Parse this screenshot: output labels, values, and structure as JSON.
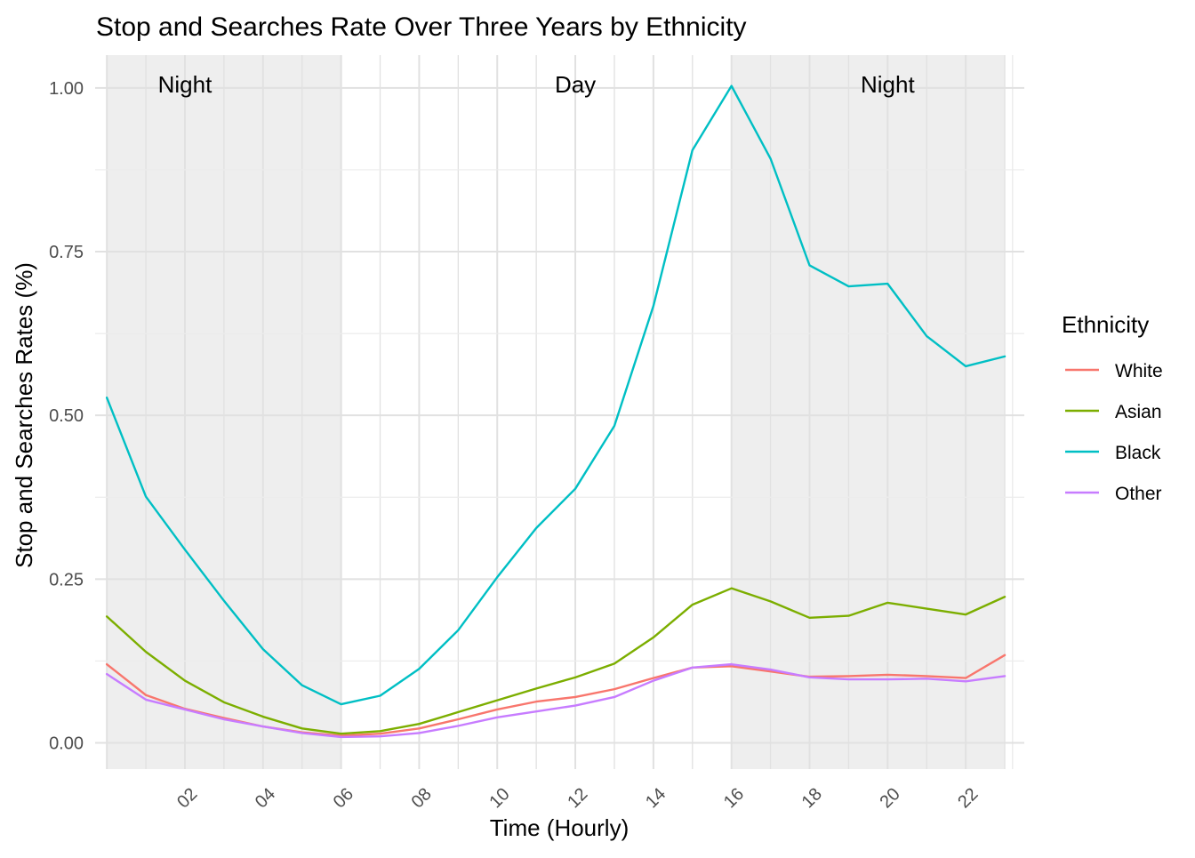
{
  "chart_data": {
    "type": "line",
    "title": "Stop and Searches Rate Over Three Years by Ethnicity",
    "xlabel": "Time (Hourly)",
    "ylabel": "Stop and Searches Rates (%)",
    "x": [
      0,
      1,
      2,
      3,
      4,
      5,
      6,
      7,
      8,
      9,
      10,
      11,
      12,
      13,
      14,
      15,
      16,
      17,
      18,
      19,
      20,
      21,
      22,
      23
    ],
    "xlim": [
      -0.3,
      23.5
    ],
    "ylim": [
      -0.04,
      1.05
    ],
    "x_ticks": [
      {
        "value": 2,
        "label": "02"
      },
      {
        "value": 4,
        "label": "04"
      },
      {
        "value": 6,
        "label": "06"
      },
      {
        "value": 8,
        "label": "08"
      },
      {
        "value": 10,
        "label": "10"
      },
      {
        "value": 12,
        "label": "12"
      },
      {
        "value": 14,
        "label": "14"
      },
      {
        "value": 16,
        "label": "16"
      },
      {
        "value": 18,
        "label": "18"
      },
      {
        "value": 20,
        "label": "20"
      },
      {
        "value": 22,
        "label": "22"
      }
    ],
    "y_ticks": [
      {
        "value": 0,
        "label": "0.00"
      },
      {
        "value": 0.25,
        "label": "0.25"
      },
      {
        "value": 0.5,
        "label": "0.50"
      },
      {
        "value": 0.75,
        "label": "0.75"
      },
      {
        "value": 1.0,
        "label": "1.00"
      }
    ],
    "grid": true,
    "shaded_regions": [
      {
        "from": 0,
        "to": 6,
        "label": "Night",
        "label_x": 2
      },
      {
        "from": 16,
        "to": 23,
        "label": "Night",
        "label_x": 20
      }
    ],
    "region_annotations": [
      {
        "x": 12,
        "label": "Day"
      }
    ],
    "legend": {
      "title": "Ethnicity",
      "position": "right"
    },
    "series": [
      {
        "name": "White",
        "color": "#F8766D",
        "values": [
          0.12,
          0.073,
          0.052,
          0.038,
          0.025,
          0.016,
          0.011,
          0.014,
          0.022,
          0.036,
          0.051,
          0.063,
          0.07,
          0.082,
          0.099,
          0.115,
          0.117,
          0.109,
          0.101,
          0.102,
          0.104,
          0.102,
          0.099,
          0.134
        ]
      },
      {
        "name": "Asian",
        "color": "#7CAE00",
        "values": [
          0.193,
          0.139,
          0.095,
          0.062,
          0.04,
          0.022,
          0.014,
          0.018,
          0.029,
          0.047,
          0.065,
          0.083,
          0.1,
          0.121,
          0.161,
          0.211,
          0.236,
          0.216,
          0.191,
          0.194,
          0.214,
          0.205,
          0.196,
          0.223
        ]
      },
      {
        "name": "Black",
        "color": "#00BFC4",
        "values": [
          0.527,
          0.376,
          0.295,
          0.217,
          0.143,
          0.088,
          0.059,
          0.072,
          0.113,
          0.172,
          0.253,
          0.328,
          0.388,
          0.484,
          0.667,
          0.905,
          1.003,
          0.892,
          0.729,
          0.697,
          0.701,
          0.621,
          0.575,
          0.59
        ]
      },
      {
        "name": "Other",
        "color": "#C77CFF",
        "values": [
          0.105,
          0.066,
          0.051,
          0.036,
          0.025,
          0.015,
          0.009,
          0.01,
          0.015,
          0.026,
          0.039,
          0.048,
          0.057,
          0.07,
          0.095,
          0.115,
          0.12,
          0.112,
          0.1,
          0.097,
          0.097,
          0.098,
          0.094,
          0.102
        ]
      }
    ]
  }
}
